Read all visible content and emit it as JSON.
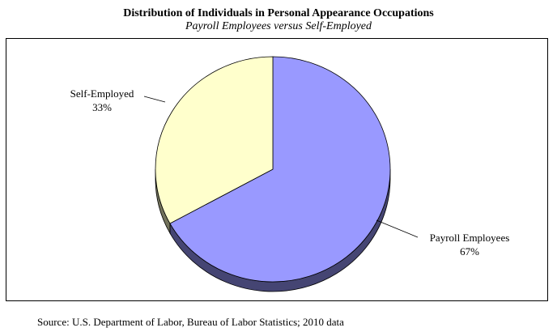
{
  "chart_data": {
    "type": "pie",
    "title": "Distribution of Individuals in Personal Appearance Occupations",
    "subtitle": "Payroll Employees versus Self-Employed",
    "slices": [
      {
        "label": "Payroll Employees",
        "value": 67,
        "value_label": "67%",
        "color": "#9999ff"
      },
      {
        "label": "Self-Employed",
        "value": 33,
        "value_label": "33%",
        "color": "#ffffcc"
      }
    ],
    "legend": "none"
  },
  "source": "Source: U.S. Department of Labor, Bureau of Labor Statistics; 2010 data"
}
